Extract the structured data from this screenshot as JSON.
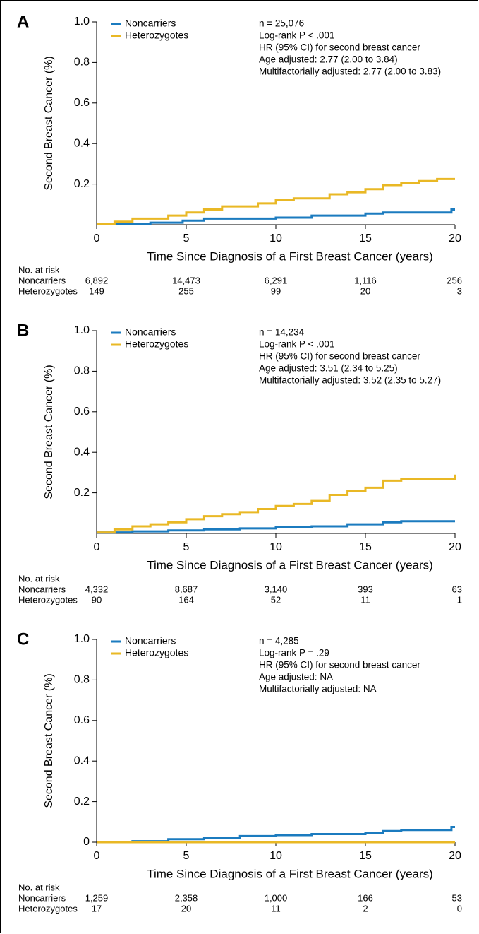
{
  "chart_data": [
    {
      "type": "line",
      "panel": "A",
      "xlabel": "Time Since Diagnosis of a First Breast Cancer (years)",
      "ylabel": "Second Breast Cancer (%)",
      "xlim": [
        0,
        20
      ],
      "xticks": [
        0,
        5,
        10,
        15,
        20
      ],
      "ylim": [
        0,
        1.0
      ],
      "yticks": [
        0.2,
        0.4,
        0.6,
        0.8,
        {
          "value": 1.0,
          "label": "1.0"
        }
      ],
      "legend": "upper left",
      "annotations": [
        "n = 25,076",
        "Log-rank P < .001",
        "HR (95% CI) for second breast cancer",
        "Age adjusted: 2.77 (2.00 to 3.84)",
        "Multifactorially adjusted: 2.77 (2.00 to 3.83)"
      ],
      "series": [
        {
          "name": "Noncarriers",
          "color": "#1b7bbf",
          "x": [
            0,
            3,
            3,
            4.8,
            4.8,
            6,
            6,
            10,
            10,
            12,
            12,
            15,
            15,
            16,
            16,
            19.8,
            19.8,
            20
          ],
          "values": [
            0.005,
            0.005,
            0.01,
            0.01,
            0.02,
            0.02,
            0.03,
            0.03,
            0.035,
            0.035,
            0.045,
            0.045,
            0.055,
            0.055,
            0.06,
            0.06,
            0.075,
            0.075
          ]
        },
        {
          "name": "Heterozygotes",
          "color": "#e9b825",
          "x": [
            0,
            1,
            1,
            2,
            2,
            4,
            4,
            5,
            5,
            6,
            6,
            7,
            7,
            9,
            9,
            10,
            10,
            11,
            11,
            13,
            13,
            14,
            14,
            15,
            15,
            16,
            16,
            17,
            17,
            18,
            18,
            19,
            19,
            20
          ],
          "values": [
            0.005,
            0.005,
            0.015,
            0.015,
            0.03,
            0.03,
            0.045,
            0.045,
            0.06,
            0.06,
            0.075,
            0.075,
            0.09,
            0.09,
            0.105,
            0.105,
            0.12,
            0.12,
            0.13,
            0.13,
            0.15,
            0.15,
            0.16,
            0.16,
            0.175,
            0.175,
            0.195,
            0.195,
            0.205,
            0.205,
            0.215,
            0.215,
            0.225,
            0.225
          ]
        }
      ],
      "risk_table": {
        "title": "No. at risk",
        "rows": [
          {
            "name": "Noncarriers",
            "values": [
              6892,
              14473,
              6291,
              1116,
              256
            ],
            "value_labels": [
              "6,892",
              "14,473",
              "6,291",
              "1,116",
              "256"
            ]
          },
          {
            "name": "Heterozygotes",
            "values": [
              149,
              255,
              99,
              20,
              3
            ]
          }
        ]
      }
    },
    {
      "type": "line",
      "panel": "B",
      "xlabel": "Time Since Diagnosis of a First Breast Cancer (years)",
      "ylabel": "Second Breast Cancer (%)",
      "xlim": [
        0,
        20
      ],
      "xticks": [
        0,
        5,
        10,
        15,
        20
      ],
      "ylim": [
        0,
        1.0
      ],
      "yticks": [
        0.2,
        0.4,
        0.6,
        0.8,
        {
          "value": 1.0,
          "label": "1.0"
        }
      ],
      "legend": "upper left",
      "annotations": [
        "n = 14,234",
        "Log-rank P < .001",
        "HR (95% CI) for second breast cancer",
        "Age adjusted: 3.51 (2.34 to 5.25)",
        "Multifactorially adjusted: 3.52 (2.35 to 5.27)"
      ],
      "series": [
        {
          "name": "Noncarriers",
          "color": "#1b7bbf",
          "x": [
            0,
            2,
            2,
            4,
            4,
            6,
            6,
            8,
            8,
            10,
            10,
            12,
            12,
            14,
            14,
            16,
            16,
            17,
            17,
            20
          ],
          "values": [
            0.005,
            0.005,
            0.01,
            0.01,
            0.015,
            0.015,
            0.02,
            0.02,
            0.025,
            0.025,
            0.03,
            0.03,
            0.035,
            0.035,
            0.045,
            0.045,
            0.055,
            0.055,
            0.06,
            0.06
          ]
        },
        {
          "name": "Heterozygotes",
          "color": "#e9b825",
          "x": [
            0,
            1,
            1,
            2,
            2,
            3,
            3,
            4,
            4,
            5,
            5,
            6,
            6,
            7,
            7,
            8,
            8,
            9,
            9,
            10,
            10,
            11,
            11,
            12,
            12,
            13,
            13,
            14,
            14,
            15,
            15,
            16,
            16,
            17,
            17,
            20,
            20
          ],
          "values": [
            0.005,
            0.005,
            0.02,
            0.02,
            0.035,
            0.035,
            0.045,
            0.045,
            0.055,
            0.055,
            0.07,
            0.07,
            0.085,
            0.085,
            0.095,
            0.095,
            0.105,
            0.105,
            0.12,
            0.12,
            0.135,
            0.135,
            0.145,
            0.145,
            0.16,
            0.16,
            0.19,
            0.19,
            0.21,
            0.21,
            0.225,
            0.225,
            0.26,
            0.26,
            0.27,
            0.27,
            0.29
          ]
        }
      ],
      "risk_table": {
        "title": "No. at risk",
        "rows": [
          {
            "name": "Noncarriers",
            "values": [
              4332,
              8687,
              3140,
              393,
              63
            ],
            "value_labels": [
              "4,332",
              "8,687",
              "3,140",
              "393",
              "63"
            ]
          },
          {
            "name": "Heterozygotes",
            "values": [
              90,
              164,
              52,
              11,
              1
            ]
          }
        ]
      }
    },
    {
      "type": "line",
      "panel": "C",
      "xlabel": "Time Since Diagnosis of a First Breast Cancer (years)",
      "ylabel": "Second Breast Cancer (%)",
      "xlim": [
        0,
        20
      ],
      "xticks": [
        0,
        5,
        10,
        15,
        20
      ],
      "ylim": [
        0,
        1.0
      ],
      "yticks": [
        0,
        0.2,
        0.4,
        0.6,
        0.8,
        {
          "value": 1.0,
          "label": "1.0"
        }
      ],
      "legend": "upper left",
      "annotations": [
        "n = 4,285",
        "Log-rank P = .29",
        "HR (95% CI) for second breast cancer",
        "Age adjusted: NA",
        "Multifactorially adjusted: NA"
      ],
      "series": [
        {
          "name": "Noncarriers",
          "color": "#1b7bbf",
          "x": [
            0,
            2,
            2,
            4,
            4,
            6,
            6,
            8,
            8,
            10,
            10,
            12,
            12,
            15,
            15,
            16,
            16,
            17,
            17,
            19.8,
            19.8,
            20
          ],
          "values": [
            0,
            0,
            0.005,
            0.005,
            0.015,
            0.015,
            0.02,
            0.02,
            0.03,
            0.03,
            0.035,
            0.035,
            0.04,
            0.04,
            0.045,
            0.045,
            0.055,
            0.055,
            0.06,
            0.06,
            0.075,
            0.075
          ]
        },
        {
          "name": "Heterozygotes",
          "color": "#e9b825",
          "x": [
            0,
            20
          ],
          "values": [
            0,
            0
          ]
        }
      ],
      "risk_table": {
        "title": "No. at risk",
        "rows": [
          {
            "name": "Noncarriers",
            "values": [
              1259,
              2358,
              1000,
              166,
              53
            ],
            "value_labels": [
              "1,259",
              "2,358",
              "1,000",
              "166",
              "53"
            ]
          },
          {
            "name": "Heterozygotes",
            "values": [
              17,
              20,
              11,
              2,
              0
            ]
          }
        ]
      }
    }
  ]
}
